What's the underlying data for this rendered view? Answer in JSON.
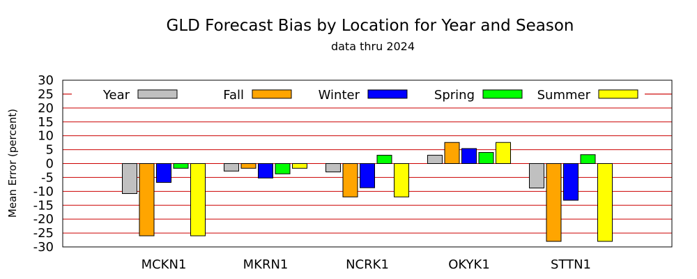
{
  "chart_data": {
    "type": "bar",
    "title": "GLD Forecast Bias by Location for Year and Season",
    "subtitle": "data thru 2024",
    "xlabel": "",
    "ylabel": "Mean Error (percent)",
    "ylim": [
      -30,
      30
    ],
    "yticks": [
      30,
      25,
      20,
      15,
      10,
      5,
      0,
      -5,
      -10,
      -15,
      -20,
      -25,
      -30
    ],
    "grid": true,
    "grid_color": "#cc0000",
    "legend_position": "top",
    "categories": [
      "MCKN1",
      "MKRN1",
      "NCRK1",
      "OKYK1",
      "STTN1"
    ],
    "series": [
      {
        "name": "Year",
        "color": "#c0c0c0",
        "values": [
          -10.8,
          -2.7,
          -3.0,
          3.0,
          -8.8
        ]
      },
      {
        "name": "Fall",
        "color": "#ffa500",
        "values": [
          -26.0,
          -1.7,
          -12.0,
          7.6,
          -28.0
        ]
      },
      {
        "name": "Winter",
        "color": "#0000ff",
        "values": [
          -6.8,
          -5.2,
          -8.7,
          5.4,
          -13.2
        ]
      },
      {
        "name": "Spring",
        "color": "#00ff00",
        "values": [
          -1.7,
          -3.7,
          3.0,
          4.0,
          3.2
        ]
      },
      {
        "name": "Summer",
        "color": "#ffff00",
        "values": [
          -26.0,
          -1.7,
          -12.0,
          7.6,
          -28.0
        ]
      }
    ]
  }
}
